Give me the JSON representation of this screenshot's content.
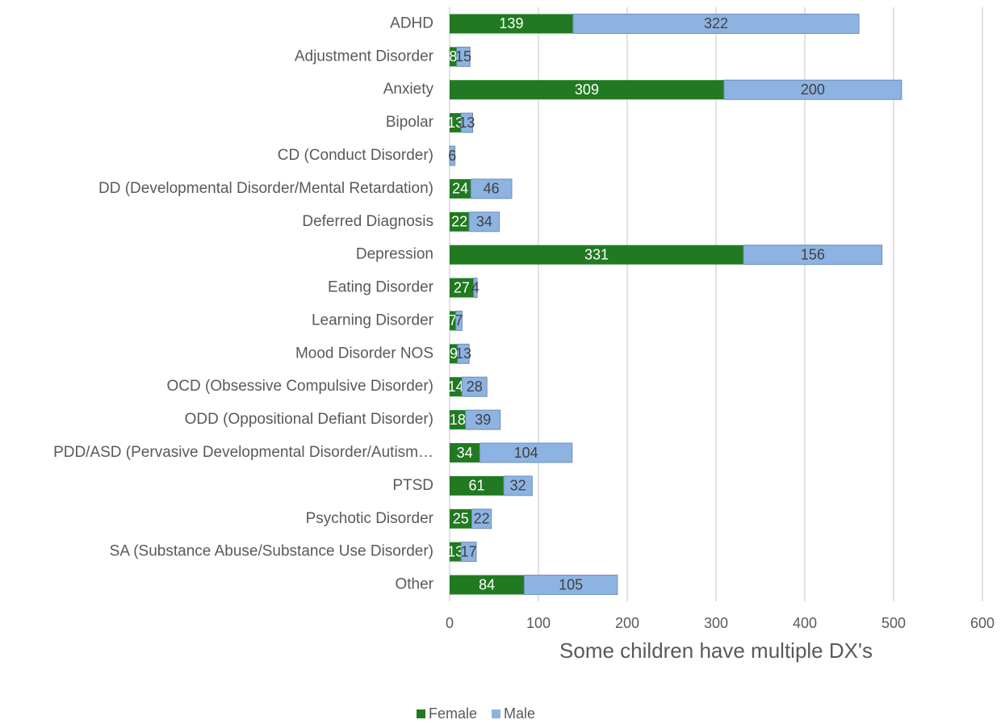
{
  "chart_data": {
    "type": "bar",
    "orientation": "horizontal",
    "stacked": true,
    "x_label": "Some children have multiple DX's",
    "categories": [
      "ADHD",
      "Adjustment Disorder",
      "Anxiety",
      "Bipolar",
      "CD (Conduct Disorder)",
      "DD (Developmental Disorder/Mental Retardation)",
      "Deferred Diagnosis",
      "Depression",
      "Eating Disorder",
      "Learning Disorder",
      "Mood Disorder NOS",
      "OCD (Obsessive Compulsive Disorder)",
      "ODD (Oppositional Defiant Disorder)",
      "PDD/ASD (Pervasive Developmental Disorder/Autism…",
      "PTSD",
      "Psychotic Disorder",
      "SA (Substance Abuse/Substance Use Disorder)",
      "Other"
    ],
    "series": [
      {
        "name": "Female",
        "color": "#217a21",
        "label_color": "#ffffff",
        "values": [
          139,
          8,
          309,
          13,
          null,
          24,
          22,
          331,
          27,
          7,
          9,
          14,
          18,
          34,
          61,
          25,
          13,
          84
        ]
      },
      {
        "name": "Male",
        "color": "#8db3e2",
        "label_color": "#404040",
        "values": [
          322,
          15,
          200,
          13,
          6,
          46,
          34,
          156,
          4,
          7,
          13,
          28,
          39,
          104,
          32,
          22,
          17,
          105
        ]
      }
    ],
    "xlim": [
      0,
      600
    ],
    "xticks": [
      0,
      100,
      200,
      300,
      400,
      500,
      600
    ],
    "grid": true,
    "legend": "bottom"
  }
}
